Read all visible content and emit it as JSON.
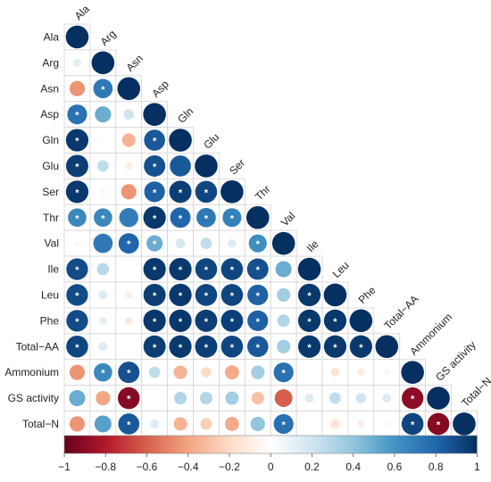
{
  "chart_data": {
    "type": "heatmap",
    "title": "",
    "variables": [
      "Ala",
      "Arg",
      "Asn",
      "Asp",
      "Gln",
      "Glu",
      "Ser",
      "Thr",
      "Val",
      "Ile",
      "Leu",
      "Phe",
      "Total−AA",
      "Ammonium",
      "GS activity",
      "Total−N"
    ],
    "lower_triangle_correlations": [
      [
        1.0
      ],
      [
        0.12,
        1.0
      ],
      [
        -0.45,
        0.72,
        1.0
      ],
      [
        0.75,
        0.5,
        0.2,
        1.0
      ],
      [
        0.97,
        0.03,
        -0.35,
        0.85,
        1.0
      ],
      [
        0.95,
        0.25,
        -0.1,
        0.88,
        0.85,
        1.0
      ],
      [
        0.97,
        0.05,
        -0.45,
        0.82,
        0.95,
        0.92,
        1.0
      ],
      [
        0.65,
        0.65,
        0.7,
        0.97,
        0.8,
        0.72,
        0.68,
        1.0
      ],
      [
        0.05,
        0.72,
        0.8,
        0.5,
        0.18,
        0.25,
        0.15,
        0.62,
        1.0
      ],
      [
        0.9,
        0.28,
        0.0,
        0.97,
        0.97,
        0.92,
        0.92,
        0.88,
        0.5,
        1.0
      ],
      [
        0.9,
        0.15,
        -0.1,
        0.95,
        0.97,
        0.92,
        0.92,
        0.82,
        0.35,
        0.97,
        1.0
      ],
      [
        0.9,
        0.12,
        -0.12,
        0.97,
        0.97,
        0.95,
        0.94,
        0.82,
        0.3,
        0.97,
        0.97,
        1.0
      ],
      [
        0.92,
        0.15,
        0.0,
        0.95,
        0.97,
        0.95,
        0.92,
        0.85,
        0.35,
        0.97,
        0.97,
        0.97,
        1.0
      ],
      [
        -0.45,
        0.65,
        0.88,
        0.25,
        -0.35,
        -0.2,
        -0.38,
        0.35,
        0.75,
        0.0,
        -0.15,
        -0.1,
        -0.05,
        1.0
      ],
      [
        0.5,
        -0.4,
        -0.92,
        0.0,
        0.3,
        0.3,
        0.35,
        -0.3,
        -0.6,
        0.15,
        0.25,
        0.2,
        0.15,
        -0.9,
        1.0
      ],
      [
        -0.45,
        0.55,
        0.85,
        0.15,
        -0.35,
        -0.25,
        -0.38,
        0.4,
        0.75,
        0.0,
        -0.15,
        -0.1,
        -0.05,
        0.92,
        -0.92,
        1.0
      ]
    ],
    "significance_marker": "*",
    "significant_cells": [
      [
        2,
        1
      ],
      [
        3,
        0
      ],
      [
        4,
        0
      ],
      [
        4,
        3
      ],
      [
        5,
        0
      ],
      [
        5,
        3
      ],
      [
        6,
        0
      ],
      [
        6,
        3
      ],
      [
        6,
        4
      ],
      [
        6,
        5
      ],
      [
        7,
        0
      ],
      [
        7,
        1
      ],
      [
        7,
        3
      ],
      [
        7,
        4
      ],
      [
        7,
        5
      ],
      [
        7,
        6
      ],
      [
        8,
        2
      ],
      [
        8,
        3
      ],
      [
        8,
        7
      ],
      [
        9,
        0
      ],
      [
        9,
        3
      ],
      [
        9,
        4
      ],
      [
        9,
        5
      ],
      [
        9,
        6
      ],
      [
        9,
        7
      ],
      [
        10,
        0
      ],
      [
        10,
        3
      ],
      [
        10,
        4
      ],
      [
        10,
        5
      ],
      [
        10,
        6
      ],
      [
        10,
        7
      ],
      [
        10,
        9
      ],
      [
        11,
        0
      ],
      [
        11,
        3
      ],
      [
        11,
        4
      ],
      [
        11,
        5
      ],
      [
        11,
        6
      ],
      [
        11,
        7
      ],
      [
        11,
        9
      ],
      [
        11,
        10
      ],
      [
        12,
        0
      ],
      [
        12,
        3
      ],
      [
        12,
        4
      ],
      [
        12,
        5
      ],
      [
        12,
        6
      ],
      [
        12,
        7
      ],
      [
        12,
        9
      ],
      [
        12,
        10
      ],
      [
        12,
        11
      ],
      [
        13,
        1
      ],
      [
        13,
        2
      ],
      [
        13,
        8
      ],
      [
        14,
        2
      ],
      [
        14,
        13
      ],
      [
        15,
        2
      ],
      [
        15,
        8
      ],
      [
        15,
        13
      ],
      [
        15,
        14
      ]
    ],
    "colorbar": {
      "range": [
        -1,
        1
      ],
      "ticks": [
        "−1",
        "−0.8",
        "−0.6",
        "−0.4",
        "−0.2",
        "0",
        "0.2",
        "0.4",
        "0.6",
        "0.8",
        "1"
      ],
      "colors": [
        "#67001f",
        "#b2182b",
        "#d6604d",
        "#f4a582",
        "#fddbc7",
        "#ffffff",
        "#d1e5f0",
        "#92c5de",
        "#4393c3",
        "#2166ac",
        "#053061"
      ]
    },
    "grid": true,
    "legend": "bottom"
  }
}
